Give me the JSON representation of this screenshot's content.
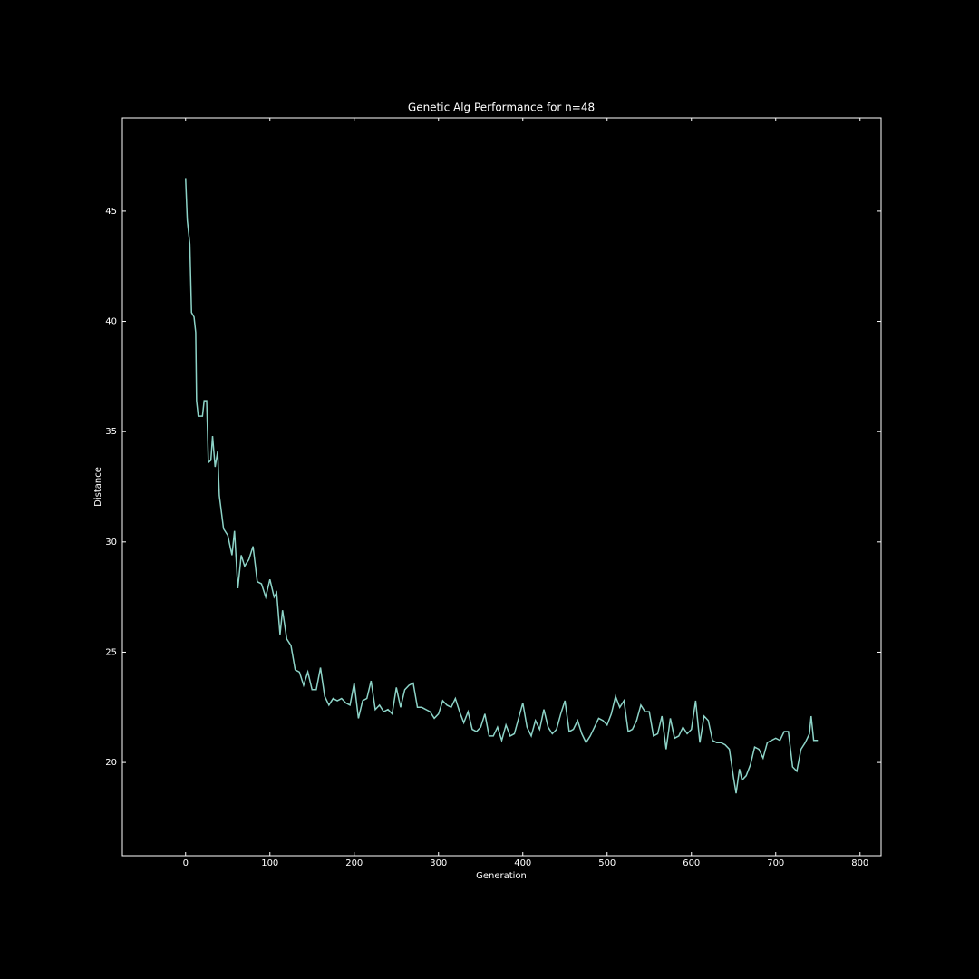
{
  "chart_data": {
    "type": "line",
    "title": "Genetic Alg Performance for n=48",
    "xlabel": "Generation",
    "ylabel": "Distance",
    "color": "#8dd3c7",
    "x": [
      0,
      2,
      5,
      7,
      10,
      12,
      13,
      15,
      20,
      22,
      25,
      27,
      30,
      32,
      35,
      38,
      40,
      45,
      50,
      55,
      58,
      62,
      66,
      70,
      75,
      80,
      85,
      90,
      95,
      100,
      105,
      108,
      112,
      115,
      120,
      125,
      130,
      135,
      140,
      145,
      150,
      155,
      160,
      165,
      170,
      175,
      180,
      185,
      190,
      195,
      200,
      205,
      210,
      215,
      220,
      225,
      230,
      235,
      240,
      245,
      250,
      255,
      260,
      265,
      270,
      275,
      280,
      290,
      295,
      300,
      305,
      310,
      315,
      320,
      325,
      330,
      335,
      340,
      345,
      350,
      355,
      360,
      365,
      370,
      375,
      380,
      385,
      390,
      395,
      400,
      405,
      410,
      415,
      420,
      425,
      430,
      435,
      440,
      445,
      450,
      455,
      460,
      465,
      470,
      475,
      480,
      485,
      490,
      495,
      500,
      505,
      510,
      515,
      520,
      525,
      530,
      535,
      540,
      545,
      550,
      555,
      560,
      565,
      570,
      575,
      580,
      585,
      590,
      595,
      600,
      605,
      610,
      615,
      620,
      625,
      630,
      635,
      640,
      645,
      650,
      653,
      657,
      660,
      665,
      670,
      675,
      680,
      685,
      690,
      695,
      700,
      705,
      710,
      715,
      720,
      725,
      730,
      735,
      740,
      742,
      745,
      750
    ],
    "values": [
      46.5,
      44.6,
      43.5,
      40.4,
      40.2,
      39.5,
      36.4,
      35.7,
      35.7,
      36.4,
      36.4,
      33.6,
      33.7,
      34.8,
      33.4,
      34.1,
      32.1,
      30.6,
      30.3,
      29.4,
      30.5,
      27.9,
      29.4,
      28.9,
      29.2,
      29.8,
      28.2,
      28.1,
      27.5,
      28.3,
      27.5,
      27.7,
      25.8,
      26.9,
      25.6,
      25.3,
      24.2,
      24.1,
      23.5,
      24.1,
      23.3,
      23.3,
      24.3,
      23.0,
      22.6,
      22.9,
      22.8,
      22.9,
      22.7,
      22.6,
      23.6,
      22.0,
      22.8,
      22.9,
      23.7,
      22.4,
      22.6,
      22.3,
      22.4,
      22.2,
      23.4,
      22.5,
      23.3,
      23.5,
      23.6,
      22.5,
      22.5,
      22.3,
      22.0,
      22.2,
      22.8,
      22.6,
      22.5,
      22.9,
      22.3,
      21.8,
      22.3,
      21.5,
      21.4,
      21.6,
      22.2,
      21.2,
      21.2,
      21.6,
      21.0,
      21.7,
      21.2,
      21.3,
      22.0,
      22.7,
      21.6,
      21.2,
      21.9,
      21.5,
      22.4,
      21.6,
      21.3,
      21.5,
      22.2,
      22.8,
      21.4,
      21.5,
      21.9,
      21.3,
      20.9,
      21.2,
      21.6,
      22.0,
      21.9,
      21.7,
      22.2,
      23.0,
      22.5,
      22.8,
      21.4,
      21.5,
      21.9,
      22.6,
      22.3,
      22.3,
      21.2,
      21.3,
      22.1,
      20.6,
      22.0,
      21.1,
      21.2,
      21.6,
      21.3,
      21.5,
      22.8,
      20.9,
      22.1,
      21.9,
      21.0,
      20.9,
      20.9,
      20.8,
      20.6,
      19.3,
      18.6,
      19.7,
      19.2,
      19.4,
      19.9,
      20.7,
      20.6,
      20.2,
      20.9,
      21.0,
      21.1,
      21.0,
      21.4,
      21.4,
      19.8,
      19.6,
      20.6,
      20.9,
      21.3,
      22.1,
      21.0,
      21.0
    ],
    "xlim": [
      -75,
      825
    ],
    "xticks": [
      0,
      100,
      200,
      300,
      400,
      500,
      600,
      700,
      800
    ],
    "ylim": [
      15.77,
      49.23
    ],
    "yticks": [
      20,
      25,
      30,
      35,
      40,
      45
    ]
  }
}
